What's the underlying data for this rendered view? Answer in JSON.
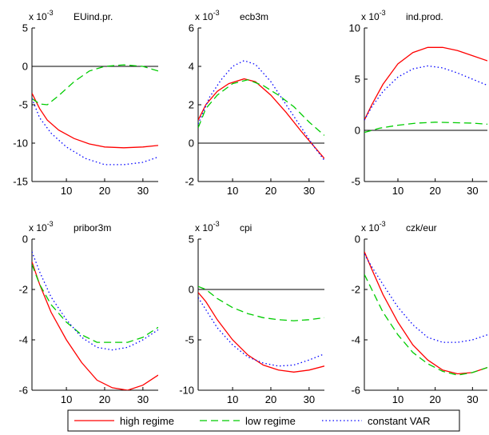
{
  "chart_data": {
    "type": "line",
    "legend": {
      "placement": "bottom-center",
      "entries": [
        {
          "label": "high regime",
          "color": "#ff0000",
          "dash": "solid"
        },
        {
          "label": "low regime",
          "color": "#00cc00",
          "dash": "dashed"
        },
        {
          "label": "constant VAR",
          "color": "#0000ff",
          "dash": "dotted"
        }
      ]
    },
    "panels": [
      {
        "title": "EUind.pr.",
        "scale_base": "x 10",
        "scale_exp": "-3",
        "xlim": [
          1,
          34
        ],
        "ylim": [
          -15,
          5
        ],
        "xticks": [
          "10",
          "20",
          "30"
        ],
        "yticks": [
          "-15",
          "-10",
          "-5",
          "0",
          "5"
        ],
        "zero_line": true,
        "series": [
          {
            "name": "high regime",
            "points": [
              [
                1,
                -3.5
              ],
              [
                3,
                -5.5
              ],
              [
                5,
                -7.0
              ],
              [
                8,
                -8.3
              ],
              [
                12,
                -9.4
              ],
              [
                16,
                -10.1
              ],
              [
                20,
                -10.5
              ],
              [
                25,
                -10.6
              ],
              [
                30,
                -10.5
              ],
              [
                34,
                -10.3
              ]
            ]
          },
          {
            "name": "low regime",
            "points": [
              [
                1,
                -4.2
              ],
              [
                3,
                -4.9
              ],
              [
                5,
                -5.0
              ],
              [
                8,
                -3.8
              ],
              [
                12,
                -2.0
              ],
              [
                16,
                -0.6
              ],
              [
                20,
                0.0
              ],
              [
                25,
                0.2
              ],
              [
                30,
                0.0
              ],
              [
                34,
                -0.6
              ]
            ]
          },
          {
            "name": "constant VAR",
            "points": [
              [
                1,
                -4.2
              ],
              [
                3,
                -6.7
              ],
              [
                6,
                -8.7
              ],
              [
                10,
                -10.5
              ],
              [
                15,
                -12.0
              ],
              [
                20,
                -12.8
              ],
              [
                25,
                -12.8
              ],
              [
                30,
                -12.5
              ],
              [
                34,
                -11.8
              ]
            ]
          }
        ]
      },
      {
        "title": "ecb3m",
        "scale_base": "x 10",
        "scale_exp": "-3",
        "xlim": [
          1,
          34
        ],
        "ylim": [
          -2,
          6
        ],
        "xticks": [
          "10",
          "20",
          "30"
        ],
        "yticks": [
          "-2",
          "0",
          "2",
          "4",
          "6"
        ],
        "zero_line": true,
        "series": [
          {
            "name": "high regime",
            "points": [
              [
                1,
                1.2
              ],
              [
                3,
                2.0
              ],
              [
                6,
                2.7
              ],
              [
                9,
                3.1
              ],
              [
                13,
                3.35
              ],
              [
                16,
                3.2
              ],
              [
                20,
                2.5
              ],
              [
                24,
                1.6
              ],
              [
                28,
                0.6
              ],
              [
                31,
                -0.1
              ],
              [
                34,
                -0.8
              ]
            ]
          },
          {
            "name": "low regime",
            "points": [
              [
                1,
                0.8
              ],
              [
                3,
                1.8
              ],
              [
                6,
                2.5
              ],
              [
                10,
                3.1
              ],
              [
                14,
                3.3
              ],
              [
                18,
                3.0
              ],
              [
                22,
                2.5
              ],
              [
                26,
                1.9
              ],
              [
                30,
                1.1
              ],
              [
                34,
                0.4
              ]
            ]
          },
          {
            "name": "constant VAR",
            "points": [
              [
                1,
                1.0
              ],
              [
                4,
                2.4
              ],
              [
                7,
                3.3
              ],
              [
                10,
                4.0
              ],
              [
                13,
                4.3
              ],
              [
                16,
                4.1
              ],
              [
                20,
                3.2
              ],
              [
                24,
                2.0
              ],
              [
                28,
                0.8
              ],
              [
                31,
                -0.1
              ],
              [
                34,
                -0.9
              ]
            ]
          }
        ]
      },
      {
        "title": "ind.prod.",
        "scale_base": "x 10",
        "scale_exp": "-3",
        "xlim": [
          1,
          34
        ],
        "ylim": [
          -5,
          10
        ],
        "xticks": [
          "10",
          "20",
          "30"
        ],
        "yticks": [
          "-5",
          "0",
          "5",
          "10"
        ],
        "zero_line": true,
        "series": [
          {
            "name": "high regime",
            "points": [
              [
                1,
                1.0
              ],
              [
                3,
                2.5
              ],
              [
                6,
                4.5
              ],
              [
                10,
                6.5
              ],
              [
                14,
                7.6
              ],
              [
                18,
                8.1
              ],
              [
                22,
                8.1
              ],
              [
                26,
                7.8
              ],
              [
                30,
                7.3
              ],
              [
                34,
                6.8
              ]
            ]
          },
          {
            "name": "low regime",
            "points": [
              [
                1,
                -0.2
              ],
              [
                5,
                0.2
              ],
              [
                10,
                0.5
              ],
              [
                15,
                0.7
              ],
              [
                20,
                0.8
              ],
              [
                25,
                0.75
              ],
              [
                30,
                0.7
              ],
              [
                34,
                0.6
              ]
            ]
          },
          {
            "name": "constant VAR",
            "points": [
              [
                1,
                1.0
              ],
              [
                3,
                2.3
              ],
              [
                6,
                3.8
              ],
              [
                10,
                5.2
              ],
              [
                14,
                6.0
              ],
              [
                18,
                6.3
              ],
              [
                22,
                6.1
              ],
              [
                26,
                5.6
              ],
              [
                30,
                5.0
              ],
              [
                34,
                4.4
              ]
            ]
          }
        ]
      },
      {
        "title": "pribor3m",
        "scale_base": "x 10",
        "scale_exp": "-3",
        "xlim": [
          1,
          34
        ],
        "ylim": [
          -6,
          0
        ],
        "xticks": [
          "10",
          "20",
          "30"
        ],
        "yticks": [
          "-6",
          "-4",
          "-2",
          "0"
        ],
        "zero_line": false,
        "series": [
          {
            "name": "high regime",
            "points": [
              [
                1,
                -0.9
              ],
              [
                3,
                -1.8
              ],
              [
                6,
                -2.9
              ],
              [
                10,
                -4.0
              ],
              [
                14,
                -4.9
              ],
              [
                18,
                -5.6
              ],
              [
                22,
                -5.9
              ],
              [
                26,
                -6.0
              ],
              [
                30,
                -5.8
              ],
              [
                34,
                -5.4
              ]
            ]
          },
          {
            "name": "low regime",
            "points": [
              [
                1,
                -1.0
              ],
              [
                3,
                -1.8
              ],
              [
                6,
                -2.6
              ],
              [
                10,
                -3.3
              ],
              [
                14,
                -3.8
              ],
              [
                18,
                -4.1
              ],
              [
                22,
                -4.1
              ],
              [
                26,
                -4.1
              ],
              [
                30,
                -3.9
              ],
              [
                34,
                -3.5
              ]
            ]
          },
          {
            "name": "constant VAR",
            "points": [
              [
                1,
                -0.5
              ],
              [
                3,
                -1.3
              ],
              [
                6,
                -2.3
              ],
              [
                10,
                -3.2
              ],
              [
                14,
                -3.9
              ],
              [
                18,
                -4.3
              ],
              [
                22,
                -4.4
              ],
              [
                26,
                -4.3
              ],
              [
                30,
                -4.0
              ],
              [
                34,
                -3.6
              ]
            ]
          }
        ]
      },
      {
        "title": "cpi",
        "scale_base": "x 10",
        "scale_exp": "-3",
        "xlim": [
          1,
          34
        ],
        "ylim": [
          -10,
          5
        ],
        "xticks": [
          "10",
          "20",
          "30"
        ],
        "yticks": [
          "-10",
          "-5",
          "0",
          "5"
        ],
        "zero_line": true,
        "series": [
          {
            "name": "high regime",
            "points": [
              [
                1,
                -0.3
              ],
              [
                3,
                -1.2
              ],
              [
                6,
                -3.0
              ],
              [
                10,
                -5.0
              ],
              [
                14,
                -6.5
              ],
              [
                18,
                -7.5
              ],
              [
                22,
                -8.0
              ],
              [
                26,
                -8.2
              ],
              [
                30,
                -8.0
              ],
              [
                34,
                -7.6
              ]
            ]
          },
          {
            "name": "low regime",
            "points": [
              [
                1,
                0.3
              ],
              [
                3,
                0.0
              ],
              [
                6,
                -0.9
              ],
              [
                10,
                -1.8
              ],
              [
                14,
                -2.4
              ],
              [
                18,
                -2.8
              ],
              [
                22,
                -3.0
              ],
              [
                26,
                -3.1
              ],
              [
                30,
                -3.0
              ],
              [
                34,
                -2.8
              ]
            ]
          },
          {
            "name": "constant VAR",
            "points": [
              [
                1,
                -0.8
              ],
              [
                3,
                -2.0
              ],
              [
                6,
                -3.8
              ],
              [
                10,
                -5.5
              ],
              [
                14,
                -6.7
              ],
              [
                18,
                -7.3
              ],
              [
                22,
                -7.6
              ],
              [
                26,
                -7.5
              ],
              [
                30,
                -7.0
              ],
              [
                34,
                -6.4
              ]
            ]
          }
        ]
      },
      {
        "title": "czk/eur",
        "scale_base": "x 10",
        "scale_exp": "-3",
        "xlim": [
          1,
          34
        ],
        "ylim": [
          -6,
          0
        ],
        "xticks": [
          "10",
          "20",
          "30"
        ],
        "yticks": [
          "-6",
          "-4",
          "-2",
          "0"
        ],
        "zero_line": false,
        "series": [
          {
            "name": "high regime",
            "points": [
              [
                1,
                -0.5
              ],
              [
                3,
                -1.2
              ],
              [
                6,
                -2.2
              ],
              [
                10,
                -3.3
              ],
              [
                14,
                -4.2
              ],
              [
                18,
                -4.8
              ],
              [
                22,
                -5.2
              ],
              [
                26,
                -5.35
              ],
              [
                30,
                -5.3
              ],
              [
                34,
                -5.1
              ]
            ]
          },
          {
            "name": "low regime",
            "points": [
              [
                1,
                -1.4
              ],
              [
                3,
                -2.0
              ],
              [
                6,
                -2.9
              ],
              [
                10,
                -3.8
              ],
              [
                14,
                -4.5
              ],
              [
                18,
                -4.95
              ],
              [
                22,
                -5.25
              ],
              [
                26,
                -5.4
              ],
              [
                30,
                -5.3
              ],
              [
                34,
                -5.1
              ]
            ]
          },
          {
            "name": "constant VAR",
            "points": [
              [
                1,
                -0.6
              ],
              [
                3,
                -1.1
              ],
              [
                6,
                -1.8
              ],
              [
                10,
                -2.7
              ],
              [
                14,
                -3.4
              ],
              [
                18,
                -3.9
              ],
              [
                22,
                -4.1
              ],
              [
                26,
                -4.1
              ],
              [
                30,
                -4.0
              ],
              [
                34,
                -3.8
              ]
            ]
          }
        ]
      }
    ]
  }
}
